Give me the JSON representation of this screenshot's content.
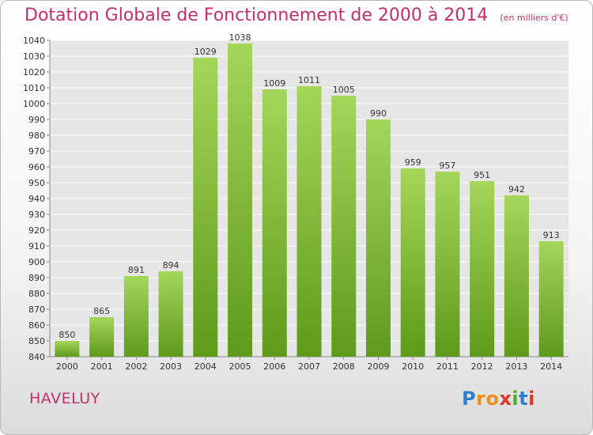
{
  "title": "Dotation Globale de Fonctionnement de 2000 à 2014",
  "subtitle": "(en milliers d'€)",
  "commune": "HAVELUY",
  "logo": {
    "text": "Proxiti",
    "letters": [
      "P",
      "r",
      "o",
      "x",
      "i",
      "t",
      "i"
    ],
    "colors": [
      "#2f80c8",
      "#f28c1c",
      "#f28c1c",
      "#d83b2a",
      "#5aaa2a",
      "#2f80c8",
      "#d83b2a"
    ]
  },
  "colors": {
    "bar_top": "#a4d65a",
    "bar_bottom": "#5e9a1c",
    "grid": "#ffffff",
    "title": "#c0306b"
  },
  "chart_data": {
    "type": "bar",
    "title": "Dotation Globale de Fonctionnement de 2000 à 2014",
    "subtitle": "(en milliers d'€)",
    "xlabel": "",
    "ylabel": "",
    "categories": [
      "2000",
      "2001",
      "2002",
      "2003",
      "2004",
      "2005",
      "2006",
      "2007",
      "2008",
      "2009",
      "2010",
      "2011",
      "2012",
      "2013",
      "2014"
    ],
    "values": [
      850,
      865,
      891,
      894,
      1029,
      1038,
      1009,
      1011,
      1005,
      990,
      959,
      957,
      951,
      942,
      913
    ],
    "value_labels": [
      "850",
      "865",
      "891",
      "894",
      "1029",
      "1038",
      "1009",
      "1011",
      "1005",
      "990",
      "959",
      "957",
      "951",
      "942",
      "913"
    ],
    "ylim": [
      840,
      1040
    ],
    "yticks": [
      840,
      850,
      860,
      870,
      880,
      890,
      900,
      910,
      920,
      930,
      940,
      950,
      960,
      970,
      980,
      990,
      1000,
      1010,
      1020,
      1030,
      1040
    ],
    "grid": true,
    "legend": false
  }
}
